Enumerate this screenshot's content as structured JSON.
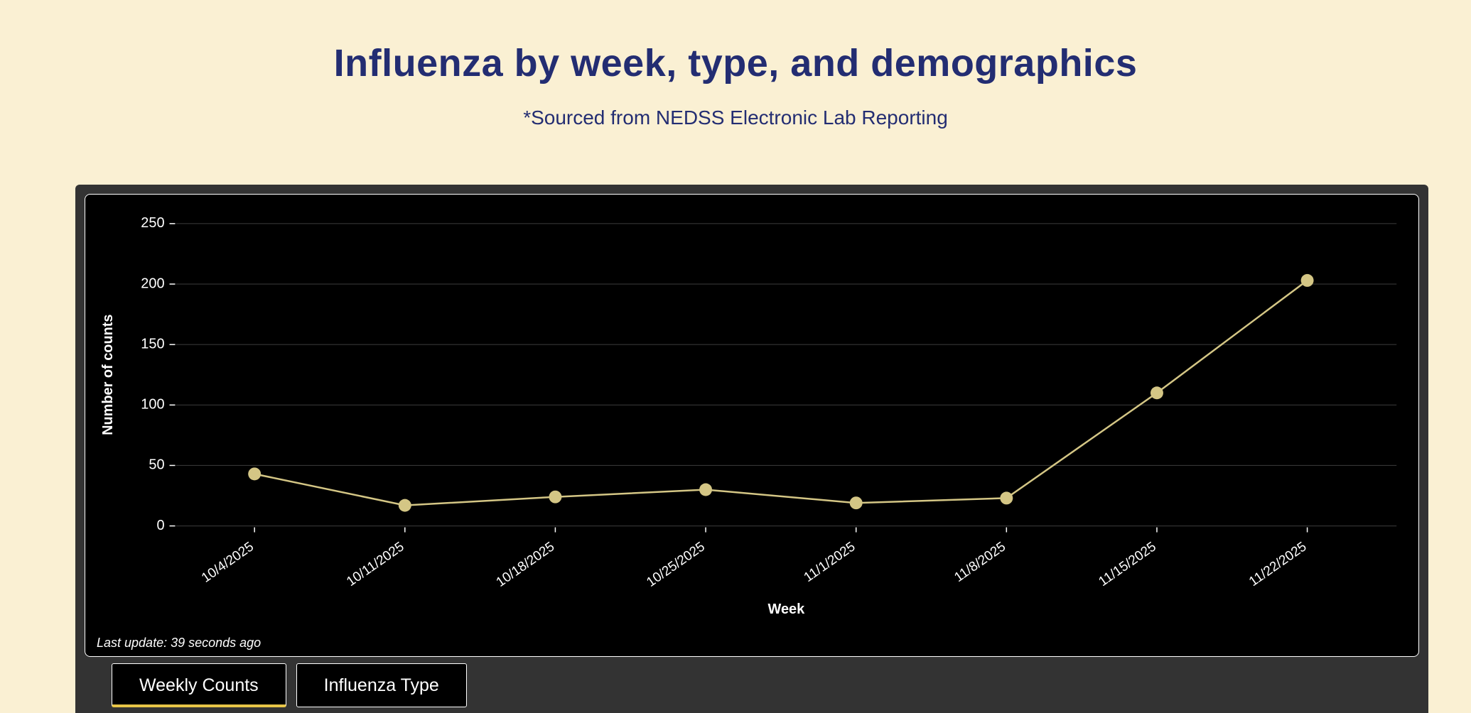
{
  "page": {
    "title": "Influenza by week, type, and demographics",
    "subtitle": "*Sourced from NEDSS Electronic Lab Reporting"
  },
  "chart_data": {
    "type": "line",
    "title": "",
    "x": [
      "10/4/2025",
      "10/11/2025",
      "10/18/2025",
      "10/25/2025",
      "11/1/2025",
      "11/8/2025",
      "11/15/2025",
      "11/22/2025"
    ],
    "series": [
      {
        "name": "Weekly Counts",
        "values": [
          43,
          17,
          24,
          30,
          19,
          23,
          110,
          203
        ]
      }
    ],
    "xlabel": "Week",
    "ylabel": "Number of counts",
    "ylim": [
      0,
      250
    ],
    "yticks": [
      0,
      50,
      100,
      150,
      200,
      250
    ],
    "grid": true,
    "legend": "none",
    "line_color": "#d4c685",
    "marker_color": "#d4c685",
    "grid_color": "#3d3d3d",
    "axis_text_color": "#ffffff",
    "chart_background": "#000000"
  },
  "status": {
    "last_update": "Last update: 39 seconds ago"
  },
  "tabs": [
    {
      "label": "Weekly Counts",
      "active": true
    },
    {
      "label": "Influenza Type",
      "active": false
    }
  ],
  "colors": {
    "page_background": "#faf0d3",
    "title_color": "#232d72",
    "panel_background": "#333333",
    "tab_accent": "#e8c547"
  }
}
